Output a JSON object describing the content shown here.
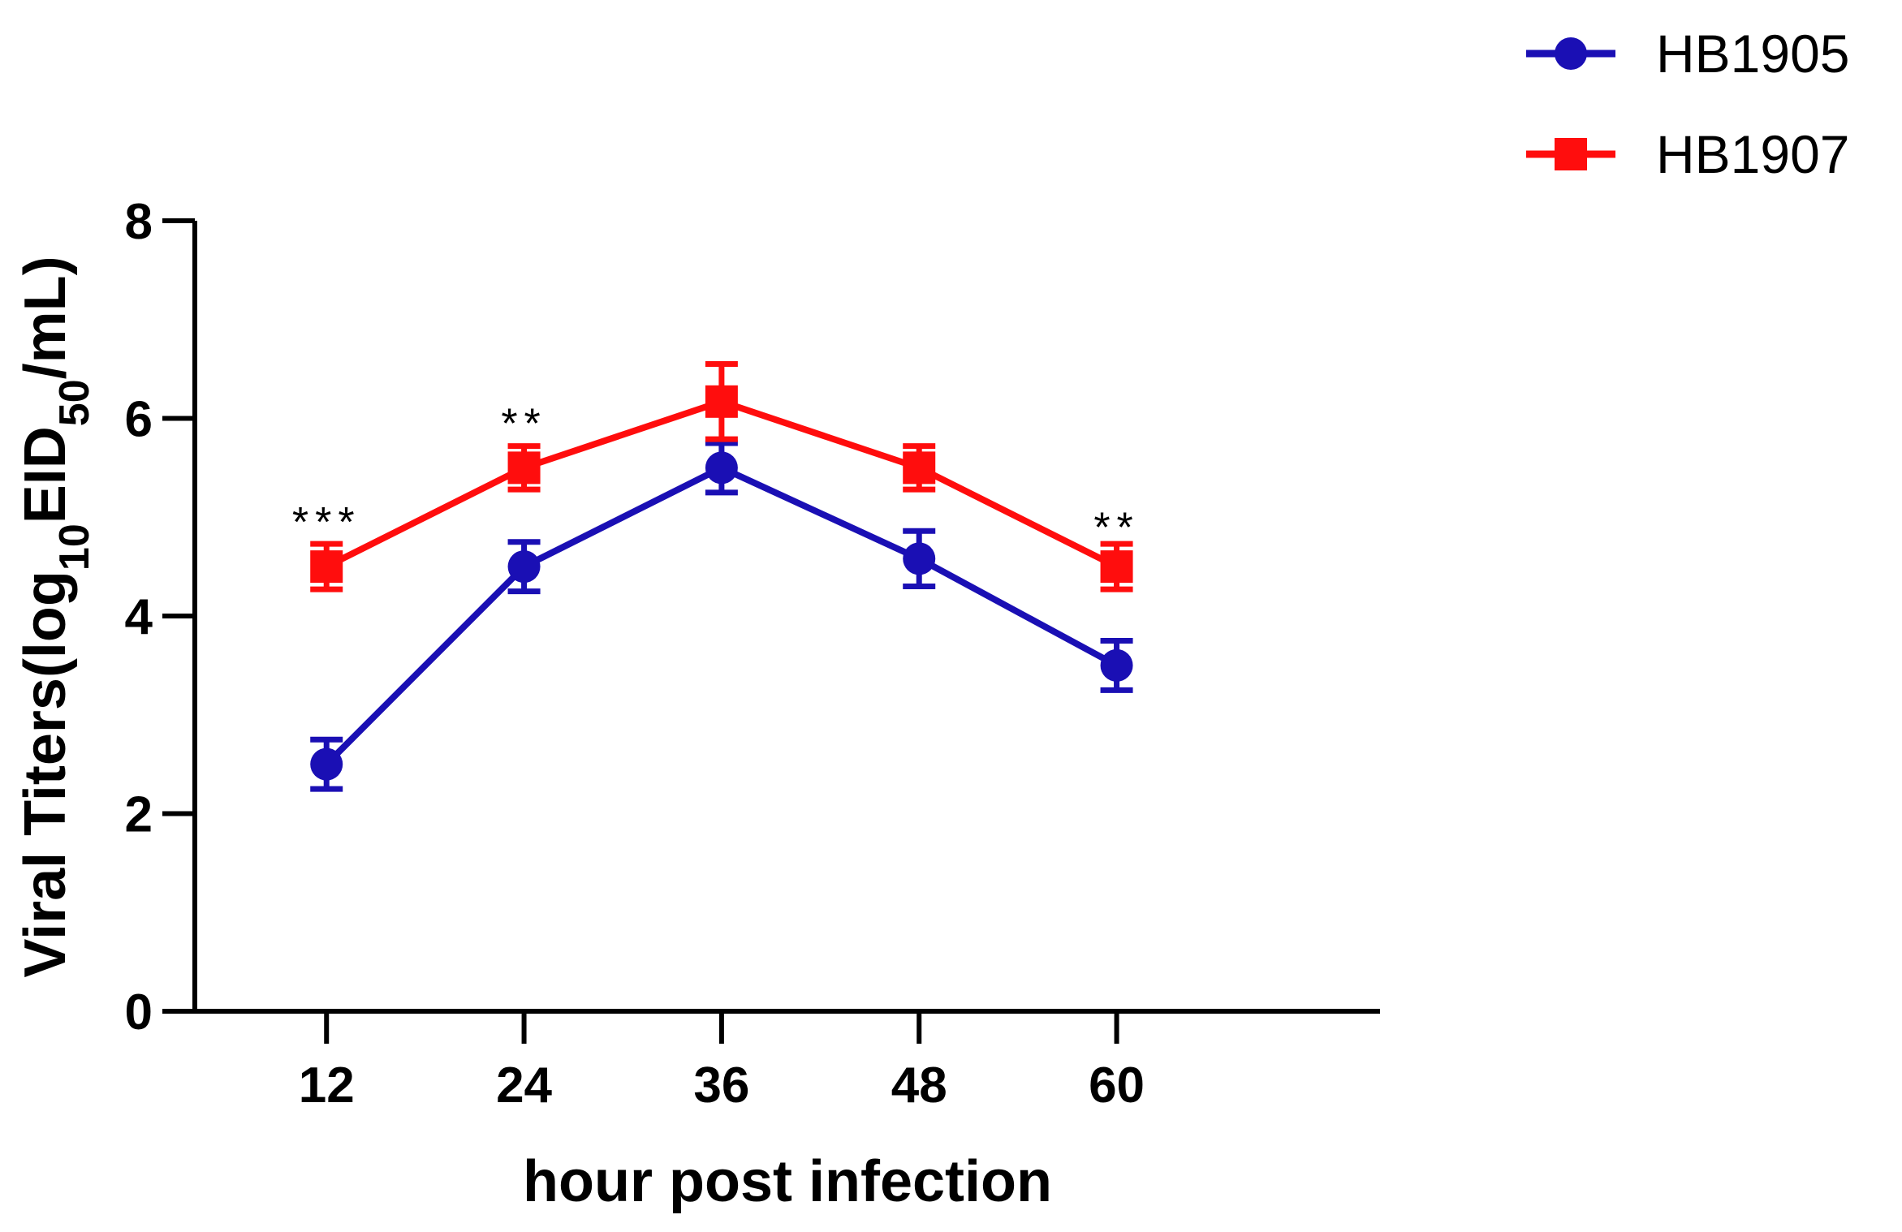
{
  "chart_data": {
    "type": "line",
    "title": "",
    "xlabel": "hour post infection",
    "ylabel": {
      "main": "Viral Titers(log",
      "sub1": "10",
      "mid": "EID",
      "sub2": "50",
      "end": "/mL)"
    },
    "x": [
      12,
      24,
      36,
      48,
      60
    ],
    "x_tick_labels": [
      "12",
      "24",
      "36",
      "48",
      "60"
    ],
    "xlim": [
      4,
      76
    ],
    "ylim": [
      0,
      8
    ],
    "y_ticks": [
      0,
      2,
      4,
      6,
      8
    ],
    "y_tick_labels": [
      "0",
      "2",
      "4",
      "6",
      "8"
    ],
    "grid": false,
    "legend_position": "top-right",
    "series": [
      {
        "name": "HB1905",
        "color": "#1a0fb4",
        "marker": "circle",
        "values": [
          2.5,
          4.5,
          5.5,
          4.58,
          3.5
        ],
        "errors": [
          0.25,
          0.25,
          0.25,
          0.28,
          0.25
        ]
      },
      {
        "name": "HB1907",
        "color": "#ff0d0d",
        "marker": "square",
        "values": [
          4.5,
          5.5,
          6.17,
          5.5,
          4.5
        ],
        "errors": [
          0.23,
          0.22,
          0.38,
          0.22,
          0.23
        ]
      }
    ],
    "annotations": [
      {
        "x": 12,
        "y": 5.05,
        "text": "***"
      },
      {
        "x": 24,
        "y": 6.05,
        "text": "**"
      },
      {
        "x": 60,
        "y": 5.0,
        "text": "**"
      }
    ]
  }
}
